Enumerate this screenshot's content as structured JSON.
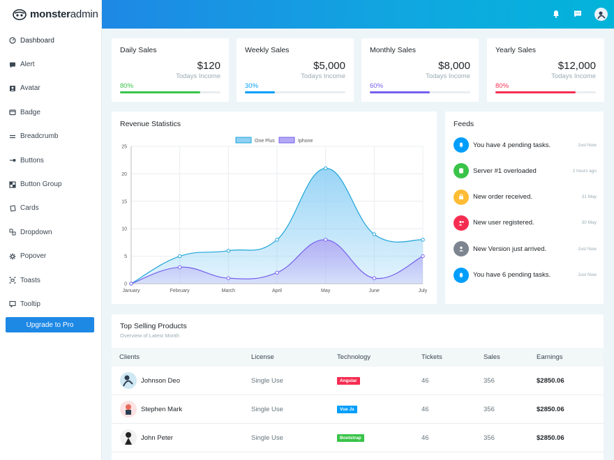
{
  "logo": {
    "bold": "monster",
    "light": "admin"
  },
  "sidebar": {
    "items": [
      {
        "label": "Dashboard",
        "icon": "gauge-icon"
      },
      {
        "label": "Alert",
        "icon": "alert-icon"
      },
      {
        "label": "Avatar",
        "icon": "avatar-icon"
      },
      {
        "label": "Badge",
        "icon": "badge-icon"
      },
      {
        "label": "Breadcrumb",
        "icon": "breadcrumb-icon"
      },
      {
        "label": "Buttons",
        "icon": "toggle-icon"
      },
      {
        "label": "Button Group",
        "icon": "grid-icon"
      },
      {
        "label": "Cards",
        "icon": "cards-icon"
      },
      {
        "label": "Dropdown",
        "icon": "dropdown-icon"
      },
      {
        "label": "Popover",
        "icon": "gear-icon"
      },
      {
        "label": "Toasts",
        "icon": "toasts-icon"
      },
      {
        "label": "Tooltip",
        "icon": "tooltip-icon"
      }
    ],
    "upgrade_label": "Upgrade to Pro"
  },
  "topbar": {
    "icons": [
      "bell-icon",
      "message-icon",
      "user-avatar"
    ]
  },
  "sales": [
    {
      "title": "Daily Sales",
      "value": "$120",
      "sub": "Todays Income",
      "pct": "80%",
      "progress": 0.8,
      "color": "#39c449"
    },
    {
      "title": "Weekly Sales",
      "value": "$5,000",
      "sub": "Todays Income",
      "pct": "30%",
      "progress": 0.3,
      "color": "#009efb"
    },
    {
      "title": "Monthly Sales",
      "value": "$8,000",
      "sub": "Todays Income",
      "pct": "60%",
      "progress": 0.6,
      "color": "#7460ee"
    },
    {
      "title": "Yearly Sales",
      "value": "$12,000",
      "sub": "Todays Income",
      "pct": "80%",
      "progress": 0.8,
      "color": "#f62d51"
    }
  ],
  "revenue": {
    "title": "Revenue Statistics"
  },
  "chart_data": {
    "type": "area",
    "categories": [
      "January",
      "February",
      "March",
      "April",
      "May",
      "June",
      "July"
    ],
    "series": [
      {
        "name": "One Plus",
        "values": [
          0,
          5,
          6,
          8,
          21,
          9,
          8
        ],
        "stroke": "#1ea5d8",
        "fill": "#8fd0f5"
      },
      {
        "name": "Iphone",
        "values": [
          0,
          3,
          1,
          2,
          8,
          1,
          5
        ],
        "stroke": "#7460ee",
        "fill": "#b3a9f4"
      }
    ],
    "ylim": [
      0,
      25
    ],
    "yticks": [
      0,
      5,
      10,
      15,
      20,
      25
    ],
    "grid": true,
    "legend": "top-center",
    "smooth": true
  },
  "feeds": {
    "title": "Feeds",
    "items": [
      {
        "text": "You have 4 pending tasks.",
        "time": "Just Now",
        "color": "#009efb",
        "icon": "bell-icon"
      },
      {
        "text": "Server #1 overloaded",
        "time": "2 hours ago",
        "color": "#39c449",
        "icon": "server-icon"
      },
      {
        "text": "New order received.",
        "time": "31 May",
        "color": "#ffbc34",
        "icon": "cart-icon"
      },
      {
        "text": "New user registered.",
        "time": "30 May",
        "color": "#f62d51",
        "icon": "user-plus-icon"
      },
      {
        "text": "New Version just arrived.",
        "time": "Just Now",
        "color": "#7d8590",
        "icon": "user-icon"
      },
      {
        "text": "You have 6 pending tasks.",
        "time": "Just Now",
        "color": "#009efb",
        "icon": "bell-icon"
      }
    ]
  },
  "products": {
    "title": "Top Selling Products",
    "subtitle": "Overview of Latest Month",
    "headers": [
      "Clients",
      "License",
      "Technology",
      "Tickets",
      "Sales",
      "Earnings"
    ],
    "rows": [
      {
        "client": "Johnson Deo",
        "license": "Single Use",
        "tech": "Angular",
        "tech_color": "#f62d51",
        "tickets": "46",
        "sales": "356",
        "earnings": "$2850.06",
        "avatar_bg": "#cfe8f3"
      },
      {
        "client": "Stephen Mark",
        "license": "Single Use",
        "tech": "Vue Js",
        "tech_color": "#009efb",
        "tickets": "46",
        "sales": "356",
        "earnings": "$2850.06",
        "avatar_bg": "#fde3e3"
      },
      {
        "client": "John Peter",
        "license": "Single Use",
        "tech": "Bootstrap",
        "tech_color": "#39c449",
        "tickets": "46",
        "sales": "356",
        "earnings": "$2850.06",
        "avatar_bg": "#f1f1f1"
      }
    ]
  }
}
